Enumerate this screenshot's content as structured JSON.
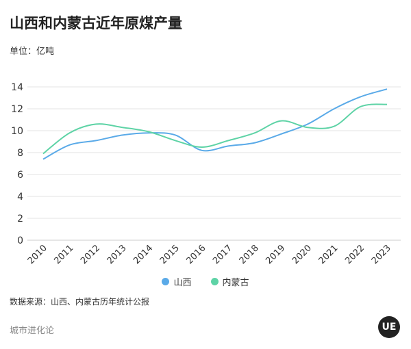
{
  "title": "山西和内蒙古近年原煤产量",
  "unit_label": "单位：亿吨",
  "source": "数据来源：山西、内蒙古历年统计公报",
  "brand": "城市进化论",
  "logo_text": "UE",
  "chart_data": {
    "type": "line",
    "title": "山西和内蒙古近年原煤产量",
    "ylabel": "单位：亿吨",
    "x": [
      "2010",
      "2011",
      "2012",
      "2013",
      "2014",
      "2015",
      "2016",
      "2017",
      "2018",
      "2019",
      "2020",
      "2021",
      "2022",
      "2023"
    ],
    "ylim": [
      0,
      14
    ],
    "yticks": [
      0,
      2,
      4,
      6,
      8,
      10,
      12,
      14
    ],
    "grid": true,
    "legend": "bottom",
    "series": [
      {
        "name": "山西",
        "color": "#5aaae8",
        "values": [
          7.4,
          8.7,
          9.1,
          9.6,
          9.8,
          9.6,
          8.2,
          8.6,
          8.9,
          9.7,
          10.6,
          12.0,
          13.1,
          13.8
        ]
      },
      {
        "name": "内蒙古",
        "color": "#5ed3a6",
        "values": [
          7.9,
          9.8,
          10.6,
          10.3,
          9.9,
          9.1,
          8.5,
          9.1,
          9.8,
          10.9,
          10.3,
          10.4,
          12.2,
          12.4
        ]
      }
    ]
  }
}
